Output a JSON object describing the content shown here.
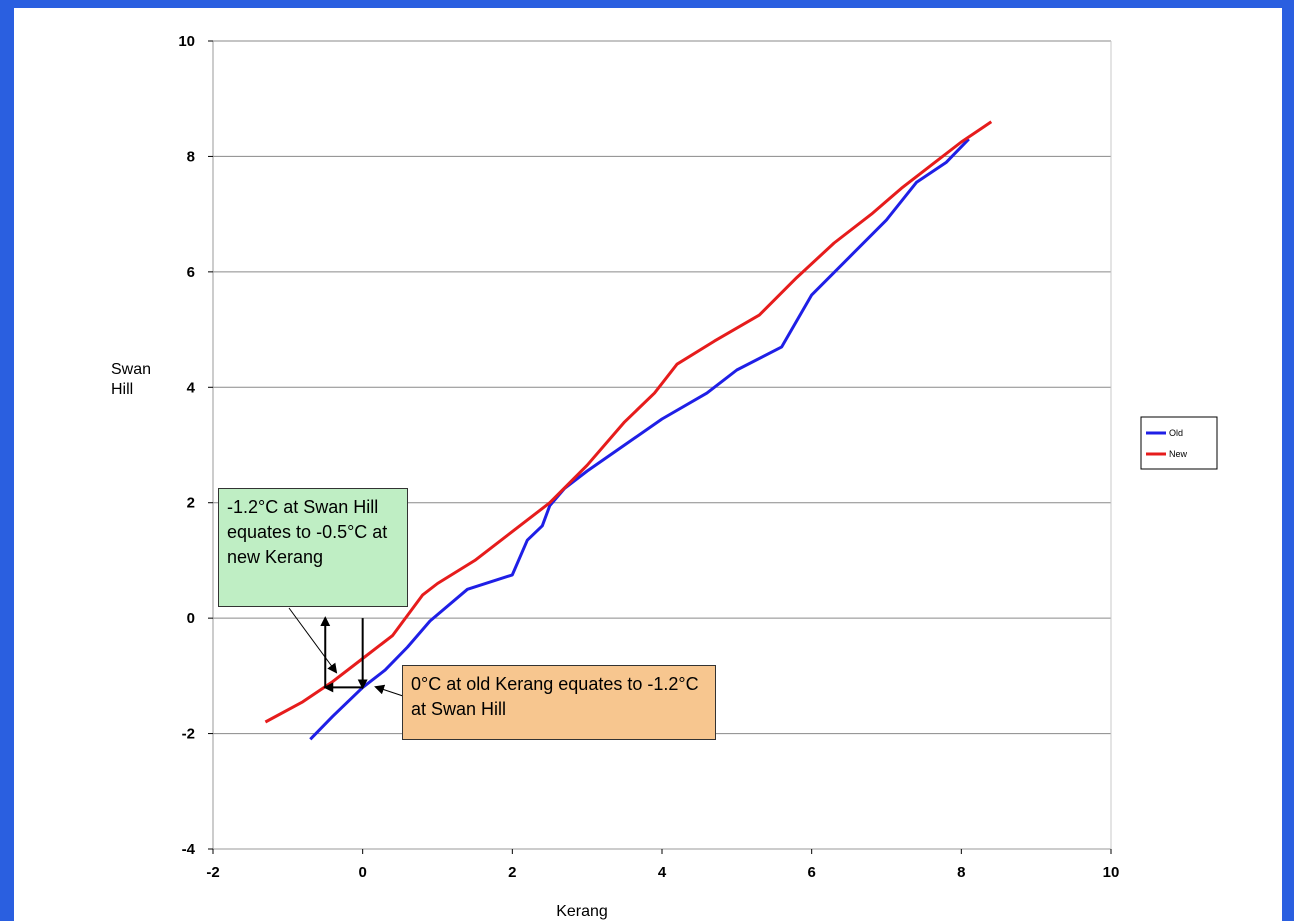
{
  "chart_data": {
    "type": "line",
    "xlabel": "Kerang",
    "ylabel": "Swan\nHill",
    "xlim": [
      -2,
      10
    ],
    "ylim": [
      -4,
      10
    ],
    "xticks": [
      -2,
      0,
      2,
      4,
      6,
      8,
      10
    ],
    "yticks": [
      -4,
      -2,
      0,
      2,
      4,
      6,
      8,
      10
    ],
    "grid": "horizontal",
    "legend_position": "right",
    "series": [
      {
        "name": "Old",
        "color": "#1f1fe6",
        "x": [
          -0.7,
          -0.4,
          0.0,
          0.3,
          0.6,
          0.9,
          1.4,
          2.0,
          2.2,
          2.4,
          2.5,
          2.7,
          3.0,
          3.5,
          4.0,
          4.6,
          5.0,
          5.6,
          6.0,
          6.5,
          7.0,
          7.4,
          7.8,
          8.1
        ],
        "y": [
          -2.1,
          -1.7,
          -1.2,
          -0.9,
          -0.5,
          -0.05,
          0.5,
          0.75,
          1.35,
          1.6,
          1.95,
          2.25,
          2.55,
          3.0,
          3.45,
          3.9,
          4.3,
          4.7,
          5.6,
          6.25,
          6.9,
          7.55,
          7.9,
          8.3
        ]
      },
      {
        "name": "New",
        "color": "#e61c1c",
        "x": [
          -1.3,
          -0.8,
          -0.4,
          0.0,
          0.4,
          0.8,
          1.0,
          1.5,
          2.0,
          2.5,
          3.0,
          3.5,
          3.9,
          4.2,
          4.7,
          5.3,
          5.8,
          6.3,
          6.8,
          7.2,
          7.6,
          8.0,
          8.4
        ],
        "y": [
          -1.8,
          -1.45,
          -1.1,
          -0.7,
          -0.3,
          0.4,
          0.6,
          1.0,
          1.5,
          2.0,
          2.65,
          3.4,
          3.9,
          4.4,
          4.8,
          5.25,
          5.9,
          6.5,
          7.0,
          7.45,
          7.85,
          8.25,
          8.6
        ]
      }
    ],
    "annotations": [
      {
        "text": "-1.2°C at Swan Hill equates to -0.5°C at new Kerang"
      },
      {
        "text": "0°C at old Kerang equates to -1.2°C at Swan Hill"
      }
    ]
  },
  "axis_color": "#999999",
  "grid_color": "#8a8a8a"
}
